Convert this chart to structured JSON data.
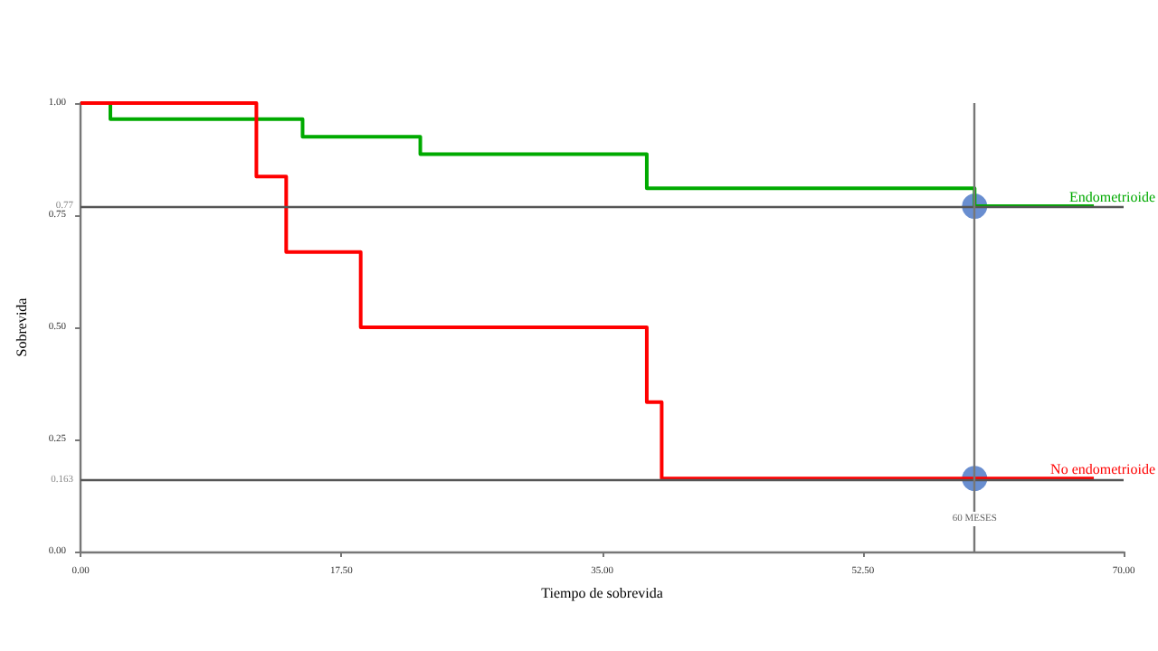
{
  "chart_data": {
    "type": "step",
    "xlabel": "Tiempo de sobrevida",
    "ylabel": "Sobrevida",
    "xlim": [
      0,
      70
    ],
    "xticks": [
      {
        "value": 0,
        "label": "0.00"
      },
      {
        "value": 17.5,
        "label": "17.50"
      },
      {
        "value": 35,
        "label": "35.00"
      },
      {
        "value": 52.5,
        "label": "52.50"
      },
      {
        "value": 70,
        "label": "70.00"
      }
    ],
    "ylim": [
      0,
      1
    ],
    "yticks": [
      {
        "value": 0,
        "label": "0.00"
      },
      {
        "value": 0.25,
        "label": "0.25"
      },
      {
        "value": 0.5,
        "label": "0.50"
      },
      {
        "value": 0.75,
        "label": "0.75"
      },
      {
        "value": 1,
        "label": "1.00"
      }
    ],
    "grid": false,
    "legend": false,
    "series": [
      {
        "name": "Endometrioide",
        "color": "#00aa00",
        "x": [
          0,
          2,
          14.9,
          22.8,
          38,
          60,
          68
        ],
        "values": [
          1,
          0.964,
          0.925,
          0.886,
          0.81,
          0.77,
          0.77
        ]
      },
      {
        "name": "No endometrioide",
        "color": "#ff0000",
        "x": [
          0,
          11.8,
          13.8,
          18.8,
          38,
          39,
          68
        ],
        "values": [
          1,
          0.836,
          0.668,
          0.5,
          0.333,
          0.163,
          0.163
        ]
      },
      {
        "type": "scatter",
        "marker": "circle",
        "color": "#4472c4",
        "x": [
          60,
          60
        ],
        "values": [
          0.77,
          0.163
        ]
      }
    ],
    "ref_lines": [
      {
        "axis": "y",
        "value": 0.77,
        "label": "0.77",
        "color": "#555555"
      },
      {
        "axis": "y",
        "value": 0.163,
        "label": "0.163",
        "color": "#555555"
      },
      {
        "axis": "x",
        "value": 60,
        "label": "60 MESES",
        "color": "#777777"
      }
    ]
  }
}
